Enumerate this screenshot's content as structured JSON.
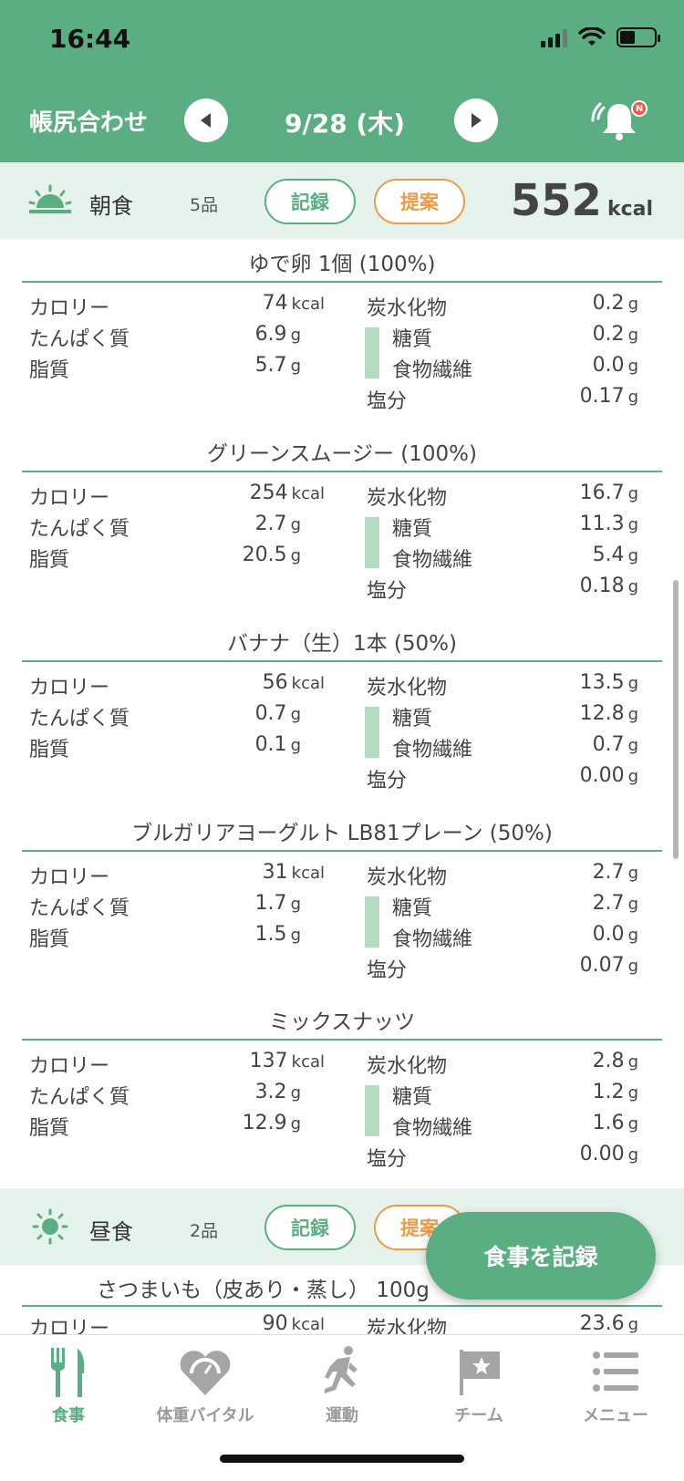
{
  "status_bar": {
    "time": "16:44"
  },
  "header": {
    "left_title": "帳尻合わせ",
    "date": "9/28 (木)",
    "notification_badge": "N",
    "colors": {
      "primary": "#5aae82",
      "accent_orange": "#ef9a44",
      "badge": "#e55a4a"
    }
  },
  "breakfast": {
    "icon": "sunrise-icon",
    "name": "朝食",
    "count": "5品",
    "record_label": "記録",
    "suggest_label": "提案",
    "kcal": "552",
    "kcal_unit": "kcal",
    "labels": {
      "calorie": "カロリー",
      "protein": "たんぱく質",
      "fat": "脂質",
      "carbs": "炭水化物",
      "sugar": "糖質",
      "fiber": "食物繊維",
      "salt": "塩分"
    },
    "foods": [
      {
        "name": "ゆで卵 1個  (100%)",
        "calorie": "74",
        "protein": "6.9",
        "fat": "5.7",
        "carbs": "0.2",
        "sugar": "0.2",
        "fiber": "0.0",
        "salt": "0.17"
      },
      {
        "name": "グリーンスムージー  (100%)",
        "calorie": "254",
        "protein": "2.7",
        "fat": "20.5",
        "carbs": "16.7",
        "sugar": "11.3",
        "fiber": "5.4",
        "salt": "0.18"
      },
      {
        "name": "バナナ（生）1本  (50%)",
        "calorie": "56",
        "protein": "0.7",
        "fat": "0.1",
        "carbs": "13.5",
        "sugar": "12.8",
        "fiber": "0.7",
        "salt": "0.00"
      },
      {
        "name": "ブルガリアヨーグルト LB81プレーン  (50%)",
        "calorie": "31",
        "protein": "1.7",
        "fat": "1.5",
        "carbs": "2.7",
        "sugar": "2.7",
        "fiber": "0.0",
        "salt": "0.07"
      },
      {
        "name": "ミックスナッツ",
        "calorie": "137",
        "protein": "3.2",
        "fat": "12.9",
        "carbs": "2.8",
        "sugar": "1.2",
        "fiber": "1.6",
        "salt": "0.00"
      }
    ]
  },
  "lunch": {
    "icon": "sun-icon",
    "name": "昼食",
    "count": "2品",
    "record_label": "記録",
    "suggest_label": "提案",
    "first_food": {
      "name": "さつまいも（皮あり・蒸し） 100g",
      "calorie": "90",
      "carbs": "23.6"
    }
  },
  "units": {
    "kcal": "kcal",
    "g": "g"
  },
  "fab_label": "食事を記録",
  "tabs": [
    {
      "label": "食事",
      "icon": "fork-knife-icon",
      "active": true
    },
    {
      "label": "体重バイタル",
      "icon": "heart-scale-icon",
      "active": false
    },
    {
      "label": "運動",
      "icon": "running-person-icon",
      "active": false
    },
    {
      "label": "チーム",
      "icon": "flag-star-icon",
      "active": false
    },
    {
      "label": "メニュー",
      "icon": "menu-list-icon",
      "active": false
    }
  ]
}
